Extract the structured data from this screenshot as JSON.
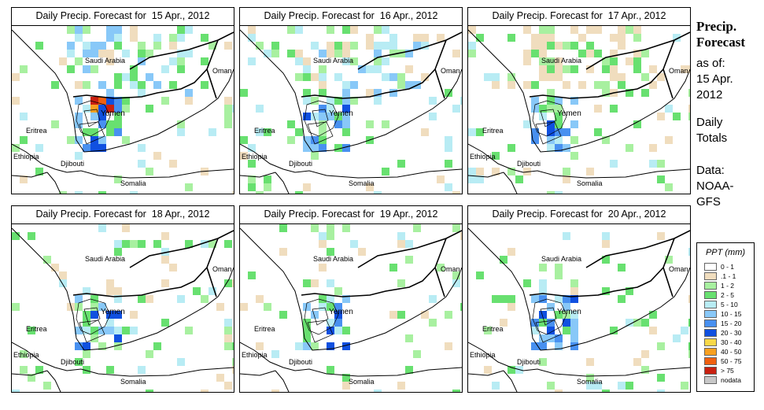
{
  "panels": [
    {
      "title": "Daily Precip. Forecast for  15 Apr., 2012"
    },
    {
      "title": "Daily Precip. Forecast for  16 Apr., 2012"
    },
    {
      "title": "Daily Precip. Forecast for  17 Apr., 2012"
    },
    {
      "title": "Daily Precip. Forecast for  18 Apr., 2012"
    },
    {
      "title": "Daily Precip. Forecast for  19 Apr., 2012"
    },
    {
      "title": "Daily Precip. Forecast for  20 Apr., 2012"
    }
  ],
  "map_labels": {
    "saudi": "Saudi Arabia",
    "oman": "Oman",
    "yemen": "Yemen",
    "eritrea": "Eritrea",
    "ethiopia": "Ethiopia",
    "djibouti": "Djibouti",
    "somalia": "Somalia"
  },
  "sidebar": {
    "title_line1": "Precip.",
    "title_line2": "Forecast",
    "asof": "as of:",
    "date_line1": "15 Apr.",
    "date_line2": "2012",
    "totals_line1": "Daily",
    "totals_line2": "Totals",
    "data_line1": "Data:",
    "data_line2": "NOAA-",
    "data_line3": "GFS"
  },
  "legend": {
    "title": "PPT (mm)",
    "classes": [
      {
        "label": "0 - 1",
        "color": "#ffffff"
      },
      {
        "label": ".1 - 1",
        "color": "#f0ddbe"
      },
      {
        "label": "1 - 2",
        "color": "#a8f0a0"
      },
      {
        "label": "2 - 5",
        "color": "#68e070"
      },
      {
        "label": "5 - 10",
        "color": "#b8ecf4"
      },
      {
        "label": "10 - 15",
        "color": "#88c8f8"
      },
      {
        "label": "15 - 20",
        "color": "#4890f0"
      },
      {
        "label": "20 - 30",
        "color": "#1050e0"
      },
      {
        "label": "30 - 40",
        "color": "#f8d848"
      },
      {
        "label": "40 - 50",
        "color": "#f8a020"
      },
      {
        "label": "50 - 75",
        "color": "#f06010"
      },
      {
        "label": "> 75",
        "color": "#c82010"
      },
      {
        "label": "nodata",
        "color": "#c8c8c8"
      }
    ]
  }
}
